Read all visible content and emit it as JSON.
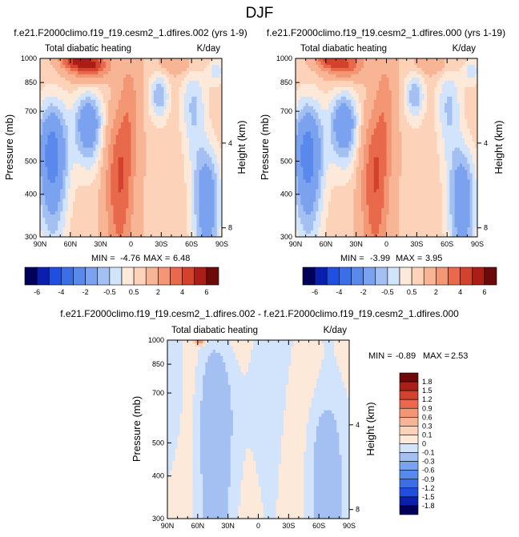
{
  "page": {
    "title": "DJF"
  },
  "colors": {
    "main_levels": [
      -6,
      -5,
      -4,
      -3,
      -2,
      -1,
      -0.5,
      0,
      0.5,
      1,
      2,
      3,
      4,
      5,
      6
    ],
    "main_palette": [
      "#00005c",
      "#0a1fae",
      "#1f4fe0",
      "#3c6ee8",
      "#5a89ec",
      "#7ba2ef",
      "#a4c0f3",
      "#d2e4fb",
      "#fde9da",
      "#fcd2b8",
      "#f8b595",
      "#f39673",
      "#e8694b",
      "#d2422c",
      "#ab1d17",
      "#6c0a0a"
    ],
    "diff_levels": [
      -1.8,
      -1.5,
      -1.2,
      -0.9,
      -0.6,
      -0.3,
      -0.1,
      0,
      0.1,
      0.3,
      0.6,
      0.9,
      1.2,
      1.5,
      1.8
    ],
    "diff_palette": [
      "#00005c",
      "#0a1fae",
      "#1f4fe0",
      "#3c6ee8",
      "#5a89ec",
      "#7ba2ef",
      "#a4c0f3",
      "#d2e4fb",
      "#fde9da",
      "#fcd2b8",
      "#f8b595",
      "#f39673",
      "#e8694b",
      "#d2422c",
      "#ab1d17",
      "#6c0a0a"
    ]
  },
  "chart_data": [
    {
      "type": "heatmap",
      "title": "f.e21.F2000climo.f19_f19.cesm2_1.dfires.002 (yrs 1-9)",
      "left_string": "Total diabatic heating",
      "right_string": "K/day",
      "ylabel": "Pressure (mb)",
      "ylabel_right": "Height (km)",
      "x_ticks": [
        "90N",
        "60N",
        "30N",
        "0",
        "30S",
        "60S",
        "90S"
      ],
      "x_tick_values": [
        90,
        60,
        30,
        0,
        -30,
        -60,
        -90
      ],
      "y_ticks": [
        300,
        400,
        500,
        700,
        850,
        1000
      ],
      "y_right_ticks": [
        8,
        4
      ],
      "xlim": [
        90,
        -90
      ],
      "ylim": [
        1000,
        300
      ],
      "y_scale": "log",
      "min_label": "MIN =",
      "min_value": "-4.76",
      "max_label": "MAX =",
      "max_value": "6.48",
      "colorbar_labels": [
        "-6",
        "-4",
        "-2",
        "-0.5",
        "0.5",
        "2",
        "4",
        "6"
      ],
      "colorbar_orientation": "horizontal"
    },
    {
      "type": "heatmap",
      "title": "f.e21.F2000climo.f19_f19.cesm2_1.dfires.000 (yrs 1-19)",
      "left_string": "Total diabatic heating",
      "right_string": "K/day",
      "ylabel": "Pressure (mb)",
      "ylabel_right": "Height (km)",
      "x_ticks": [
        "90N",
        "60N",
        "30N",
        "0",
        "30S",
        "60S",
        "90S"
      ],
      "x_tick_values": [
        90,
        60,
        30,
        0,
        -30,
        -60,
        -90
      ],
      "y_ticks": [
        300,
        400,
        500,
        700,
        850,
        1000
      ],
      "y_right_ticks": [
        8,
        4
      ],
      "xlim": [
        90,
        -90
      ],
      "ylim": [
        1000,
        300
      ],
      "y_scale": "log",
      "min_label": "MIN =",
      "min_value": "-3.99",
      "max_label": "MAX =",
      "max_value": "3.95",
      "colorbar_labels": [
        "-6",
        "-4",
        "-2",
        "-0.5",
        "0.5",
        "2",
        "4",
        "6"
      ],
      "colorbar_orientation": "horizontal"
    },
    {
      "type": "heatmap",
      "title": "f.e21.F2000climo.f19_f19.cesm2_1.dfires.002 - f.e21.F2000climo.f19_f19.cesm2_1.dfires.000",
      "left_string": "Total diabatic heating",
      "right_string": "K/day",
      "ylabel": "Pressure (mb)",
      "ylabel_right": "Height (km)",
      "x_ticks": [
        "90N",
        "60N",
        "30N",
        "0",
        "30S",
        "60S",
        "90S"
      ],
      "x_tick_values": [
        90,
        60,
        30,
        0,
        -30,
        -60,
        -90
      ],
      "y_ticks": [
        300,
        400,
        500,
        700,
        850,
        1000
      ],
      "y_right_ticks": [
        8,
        4
      ],
      "xlim": [
        90,
        -90
      ],
      "ylim": [
        1000,
        300
      ],
      "y_scale": "log",
      "min_label": "MIN =",
      "min_value": "-0.89",
      "max_label": "MAX =",
      "max_value": "2.53",
      "colorbar_labels": [
        "1.8",
        "1.5",
        "1.2",
        "0.9",
        "0.6",
        "0.3",
        "0.1",
        "0",
        "-0.1",
        "-0.3",
        "-0.6",
        "-0.9",
        "-1.2",
        "-1.5",
        "-1.8"
      ],
      "colorbar_orientation": "vertical"
    }
  ]
}
